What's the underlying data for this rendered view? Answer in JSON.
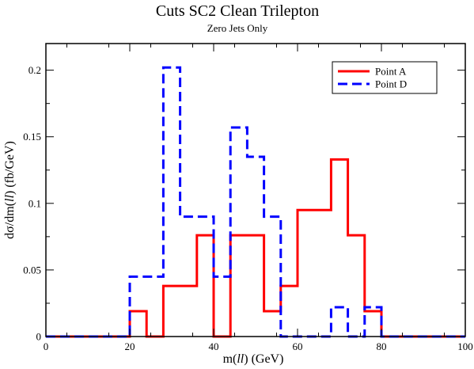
{
  "chart_data": {
    "type": "line",
    "step": true,
    "title": "Cuts SC2 Clean Trilepton",
    "subtitle": "Zero Jets Only",
    "xlabel": {
      "pre": "m(",
      "italic": "ll",
      "post": ") (GeV)"
    },
    "ylabel": {
      "pre": "dσ/dm(",
      "italic": "ll",
      "post": ") (fb/GeV)"
    },
    "xlim": [
      0,
      100
    ],
    "ylim": [
      0,
      0.22
    ],
    "xticks": [
      0,
      20,
      40,
      60,
      80,
      100
    ],
    "xtick_labels": [
      "0",
      "20",
      "40",
      "60",
      "80",
      "100"
    ],
    "yticks": [
      0,
      0.05,
      0.1,
      0.15,
      0.2
    ],
    "ytick_labels": [
      "0",
      "0.05",
      "0.1",
      "0.15",
      "0.2"
    ],
    "bin_edges": [
      0,
      4,
      8,
      12,
      16,
      20,
      24,
      28,
      32,
      36,
      40,
      44,
      48,
      52,
      56,
      60,
      64,
      68,
      72,
      76,
      80,
      84,
      88,
      92,
      96,
      100
    ],
    "legend_position": "top-right",
    "series": [
      {
        "name": "Point A",
        "color": "#ff0000",
        "dash": "solid",
        "values": [
          0,
          0,
          0,
          0,
          0,
          0.019,
          0,
          0.038,
          0.038,
          0.076,
          0,
          0.076,
          0.076,
          0.019,
          0.038,
          0.095,
          0.095,
          0.133,
          0.076,
          0.019,
          0,
          0,
          0,
          0,
          0
        ]
      },
      {
        "name": "Point D",
        "color": "#0000ff",
        "dash": "dashed",
        "values": [
          0,
          0,
          0,
          0,
          0,
          0.045,
          0.045,
          0.202,
          0.09,
          0.09,
          0.045,
          0.157,
          0.135,
          0.09,
          0,
          0,
          0,
          0.022,
          0,
          0.022,
          0,
          0,
          0,
          0,
          0
        ]
      }
    ]
  }
}
